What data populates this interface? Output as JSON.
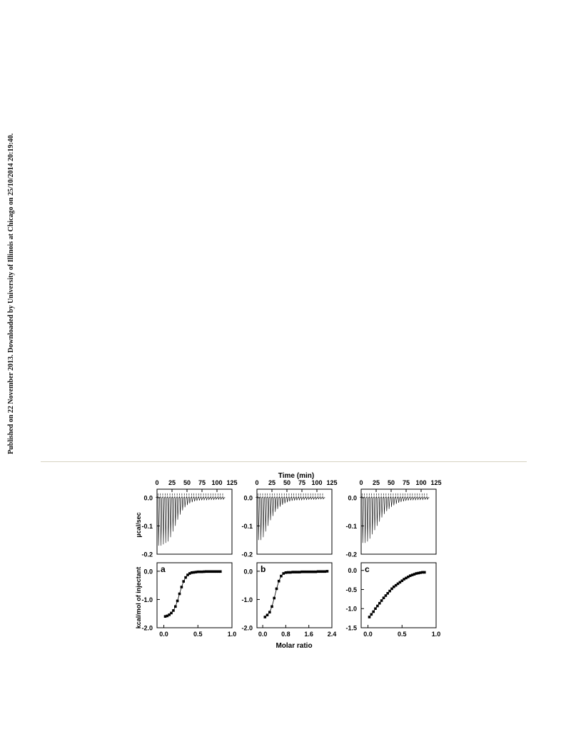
{
  "watermark": {
    "text": "Published on 22 November 2013. Downloaded by University of Illinois at Chicago on 25/10/2014 20:19:40."
  },
  "figure": {
    "top_axis_label": "Time (min)",
    "bottom_axis_label": "Molar ratio",
    "left_top_axis_label": "µcal/sec",
    "left_bottom_axis_label": "kcal/mol of injectant",
    "colors": {
      "ink": "#000000",
      "rule": "#d6d2c2"
    }
  },
  "chart_data": [
    {
      "type": "line",
      "panel": "a-top",
      "xlabel": "Time (min)",
      "ylabel": "µcal/sec",
      "xlim": [
        0,
        125
      ],
      "ylim": [
        -0.2,
        0.03
      ],
      "xticks": [
        "0",
        "25",
        "50",
        "75",
        "100",
        "125"
      ],
      "yticks": [
        "0.0",
        "-0.1",
        "-0.2"
      ],
      "series": [
        {
          "injection_times": [
            0,
            4,
            8,
            12,
            16,
            20,
            24,
            28,
            32,
            36,
            40,
            44,
            48,
            52,
            56,
            60,
            64,
            68,
            72,
            76,
            80,
            84,
            88,
            92,
            96,
            100,
            104,
            108
          ],
          "peak_minima": [
            -0.17,
            -0.17,
            -0.165,
            -0.16,
            -0.155,
            -0.14,
            -0.12,
            -0.1,
            -0.078,
            -0.06,
            -0.045,
            -0.034,
            -0.026,
            -0.02,
            -0.016,
            -0.013,
            -0.011,
            -0.01,
            -0.009,
            -0.008,
            -0.008,
            -0.007,
            -0.007,
            -0.007,
            -0.006,
            -0.006,
            -0.006,
            -0.006
          ]
        }
      ]
    },
    {
      "type": "line",
      "panel": "b-top",
      "xlabel": "Time (min)",
      "ylabel": "",
      "xlim": [
        0,
        125
      ],
      "ylim": [
        -0.2,
        0.03
      ],
      "xticks": [
        "0",
        "25",
        "50",
        "75",
        "100",
        "125"
      ],
      "yticks": [
        "0.0",
        "-0.1",
        "-0.2"
      ],
      "series": [
        {
          "injection_times": [
            0,
            4,
            8,
            12,
            16,
            20,
            24,
            28,
            32,
            36,
            40,
            44,
            48,
            52,
            56,
            60,
            64,
            68,
            72,
            76,
            80,
            84,
            88,
            92,
            96,
            100,
            104,
            108
          ],
          "peak_minima": [
            -0.15,
            -0.15,
            -0.14,
            -0.12,
            -0.1,
            -0.08,
            -0.065,
            -0.05,
            -0.04,
            -0.032,
            -0.025,
            -0.02,
            -0.016,
            -0.013,
            -0.011,
            -0.01,
            -0.009,
            -0.008,
            -0.008,
            -0.007,
            -0.007,
            -0.006,
            -0.006,
            -0.006,
            -0.006,
            -0.005,
            -0.005,
            -0.005
          ]
        }
      ]
    },
    {
      "type": "line",
      "panel": "c-top",
      "xlabel": "Time (min)",
      "ylabel": "",
      "xlim": [
        0,
        125
      ],
      "ylim": [
        -0.2,
        0.03
      ],
      "xticks": [
        "0",
        "25",
        "50",
        "75",
        "100",
        "125"
      ],
      "yticks": [
        "0.0",
        "-0.1",
        "-0.2"
      ],
      "series": [
        {
          "injection_times": [
            0,
            4,
            8,
            12,
            16,
            20,
            24,
            28,
            32,
            36,
            40,
            44,
            48,
            52,
            56,
            60,
            64,
            68,
            72,
            76,
            80,
            84,
            88,
            92,
            96,
            100,
            104,
            108
          ],
          "peak_minima": [
            -0.16,
            -0.16,
            -0.155,
            -0.145,
            -0.13,
            -0.115,
            -0.1,
            -0.085,
            -0.07,
            -0.058,
            -0.048,
            -0.04,
            -0.033,
            -0.027,
            -0.022,
            -0.018,
            -0.015,
            -0.013,
            -0.011,
            -0.01,
            -0.009,
            -0.008,
            -0.008,
            -0.007,
            -0.007,
            -0.007,
            -0.006,
            -0.006
          ]
        }
      ]
    },
    {
      "type": "scatter",
      "panel": "a",
      "xlabel": "",
      "ylabel": "kcal/mol of injectant",
      "xlim": [
        -0.1,
        1.0
      ],
      "ylim": [
        -2.0,
        0.3
      ],
      "xticks": [
        "0.0",
        "0.5",
        "1.0"
      ],
      "yticks": [
        "0.0",
        "-1.0",
        "-2.0"
      ],
      "x": [
        0.02,
        0.05,
        0.08,
        0.11,
        0.14,
        0.17,
        0.2,
        0.23,
        0.26,
        0.29,
        0.32,
        0.35,
        0.38,
        0.41,
        0.44,
        0.47,
        0.5,
        0.53,
        0.56,
        0.59,
        0.62,
        0.65,
        0.68,
        0.71,
        0.74,
        0.77,
        0.8,
        0.83
      ],
      "y": [
        -1.6,
        -1.58,
        -1.54,
        -1.48,
        -1.39,
        -1.25,
        -1.05,
        -0.8,
        -0.56,
        -0.36,
        -0.22,
        -0.13,
        -0.08,
        -0.05,
        -0.04,
        -0.03,
        -0.02,
        -0.02,
        -0.02,
        -0.015,
        -0.01,
        -0.01,
        -0.01,
        -0.01,
        -0.01,
        -0.01,
        -0.01,
        -0.01
      ]
    },
    {
      "type": "scatter",
      "panel": "b",
      "xlabel": "Molar ratio",
      "ylabel": "",
      "xlim": [
        -0.2,
        2.4
      ],
      "ylim": [
        -2.0,
        0.3
      ],
      "xticks": [
        "0.0",
        "0.8",
        "1.6",
        "2.4"
      ],
      "yticks": [
        "0.0",
        "-1.0",
        "-2.0"
      ],
      "x": [
        0.08,
        0.16,
        0.24,
        0.32,
        0.4,
        0.48,
        0.56,
        0.64,
        0.72,
        0.8,
        0.88,
        0.96,
        1.04,
        1.12,
        1.2,
        1.28,
        1.36,
        1.44,
        1.52,
        1.6,
        1.68,
        1.76,
        1.84,
        1.92,
        2.0,
        2.08,
        2.16,
        2.24
      ],
      "y": [
        -1.62,
        -1.55,
        -1.45,
        -1.25,
        -0.95,
        -0.62,
        -0.35,
        -0.17,
        -0.08,
        -0.05,
        -0.04,
        -0.04,
        -0.03,
        -0.03,
        -0.03,
        -0.03,
        -0.02,
        -0.02,
        -0.02,
        -0.02,
        -0.02,
        -0.02,
        -0.02,
        -0.01,
        -0.01,
        -0.01,
        -0.01,
        0.0
      ]
    },
    {
      "type": "scatter",
      "panel": "c",
      "xlabel": "",
      "ylabel": "",
      "xlim": [
        -0.1,
        1.0
      ],
      "ylim": [
        -1.5,
        0.2
      ],
      "xticks": [
        "0.0",
        "0.5",
        "1.0"
      ],
      "yticks": [
        "0.0",
        "-0.5",
        "-1.0",
        "-1.5"
      ],
      "x": [
        0.02,
        0.05,
        0.08,
        0.11,
        0.14,
        0.17,
        0.2,
        0.23,
        0.26,
        0.29,
        0.32,
        0.35,
        0.38,
        0.41,
        0.44,
        0.47,
        0.5,
        0.53,
        0.56,
        0.59,
        0.62,
        0.65,
        0.68,
        0.71,
        0.74,
        0.77,
        0.8,
        0.83
      ],
      "y": [
        -1.22,
        -1.15,
        -1.08,
        -1.0,
        -0.93,
        -0.86,
        -0.79,
        -0.72,
        -0.66,
        -0.6,
        -0.54,
        -0.48,
        -0.43,
        -0.39,
        -0.35,
        -0.31,
        -0.27,
        -0.23,
        -0.2,
        -0.17,
        -0.14,
        -0.12,
        -0.1,
        -0.08,
        -0.07,
        -0.06,
        -0.05,
        -0.05
      ]
    }
  ],
  "panel_letters": [
    "a",
    "b",
    "c"
  ]
}
